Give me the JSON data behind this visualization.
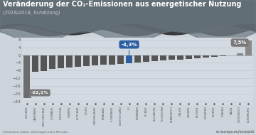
{
  "title": "Veränderung der CO₂-Emissionen aus energetischer Nutzung",
  "subtitle": "(2019/2018, Schätzung)",
  "categories": [
    "ESTLAND",
    "DÄNEMARK",
    "GRIECHENLAND",
    "SLOWAKEI",
    "PORTUGAL",
    "SPANIEN",
    "LETTLAND",
    "POLEN",
    "NIEDERLANDE",
    "FINNLAND",
    "SLOWENIEN",
    "DEUTSCHLAND",
    "EU",
    "RUMÄNIEN",
    "IRLAND",
    "BULGARIEN",
    "TSCHECHIEN",
    "FRANKREICH",
    "ITALIEN",
    "UNGARN",
    "BELGIEN",
    "KROATIEN",
    "ZYPERN",
    "LITAUEN",
    "MALTA",
    "ÖSTERREICH",
    "LUXEMBURG"
  ],
  "values": [
    -22.1,
    -8.5,
    -8.2,
    -7.2,
    -6.8,
    -6.5,
    -6.0,
    -5.5,
    -5.2,
    -5.0,
    -4.8,
    -4.5,
    -4.3,
    -3.8,
    -3.5,
    -3.2,
    -2.8,
    -2.5,
    -2.2,
    -1.8,
    -1.5,
    -1.2,
    -0.8,
    -0.5,
    -0.2,
    0.8,
    7.5
  ],
  "bar_colors": [
    "#6d6d6d",
    "#555555",
    "#555555",
    "#555555",
    "#555555",
    "#555555",
    "#555555",
    "#555555",
    "#555555",
    "#555555",
    "#555555",
    "#555555",
    "#2c5fa1",
    "#555555",
    "#555555",
    "#555555",
    "#555555",
    "#555555",
    "#555555",
    "#555555",
    "#555555",
    "#555555",
    "#555555",
    "#555555",
    "#555555",
    "#888888",
    "#888888"
  ],
  "background_color": "#cdd4dc",
  "chart_bg": "#d4dae1",
  "annotation_eu_value": "-4,3%",
  "annotation_estland_value": "-22,1%",
  "annotation_lux_value": "7,5%",
  "ylim": [
    -26,
    9
  ],
  "yticks": [
    8,
    4,
    0,
    -4,
    -8,
    -12,
    -16,
    -20,
    -24
  ],
  "footer_left": "Schwedens Daten unterliegen einer Revision",
  "footer_right": "ec.europa.eu/eurostat",
  "grid_color": "#bbc4cc",
  "title_color": "#ffffff",
  "subtitle_color": "#dddddd",
  "label_color": "#555555",
  "cloud_dark": "#3d3d3d",
  "cloud_mid": "#5a5a5a",
  "cloud_light": "#7a8590"
}
